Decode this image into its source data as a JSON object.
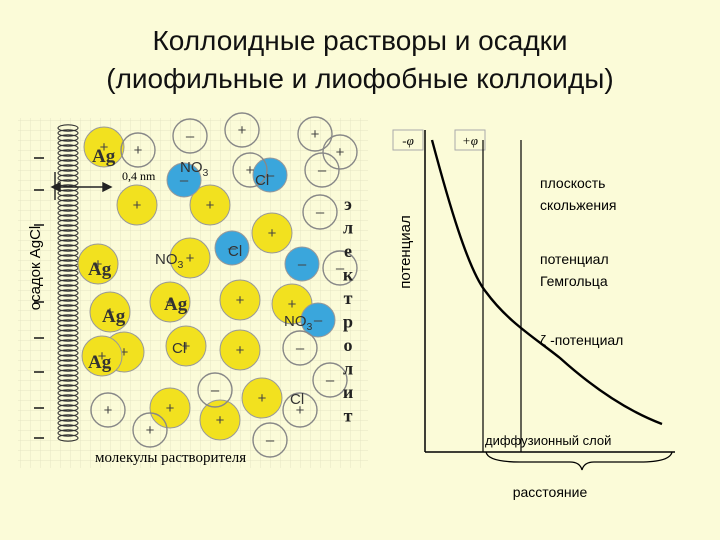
{
  "title": {
    "line1": "Коллоидные растворы и осадки",
    "line2": "(лиофильные и лиофобные коллоиды)"
  },
  "left_panel": {
    "side_label": "осадок AgCl",
    "distance_label": "0,4 nm",
    "solvent_label": "молекулы растворителя",
    "electrolyte_letters": [
      "э",
      "л",
      "е",
      "к",
      "т",
      "р",
      "о",
      "л",
      "и",
      "т"
    ],
    "ag_label": "Ag",
    "nitrate_label": "NO",
    "nitrate_sub": "3",
    "chloride_label": "Cl",
    "plus_sign": "+",
    "minus_sign": "–"
  },
  "right_panel": {
    "y_axis_label": "потенциал",
    "neg_phi": "-φ",
    "pos_phi": "+φ",
    "slip_plane_line1": "плоскость",
    "slip_plane_line2": "скольжения",
    "helmholtz_line1": "потенциал",
    "helmholtz_line2": "Гемгольца",
    "zeta_label": "ζ -потенциал",
    "diffuse_layer": "диффузионный слой",
    "x_axis_label": "расстояние"
  },
  "colors": {
    "background": "#fbfbd8",
    "yellow_ion": "#f2e11f",
    "blue_ion": "#3aa6dc",
    "curve": "#000000"
  }
}
